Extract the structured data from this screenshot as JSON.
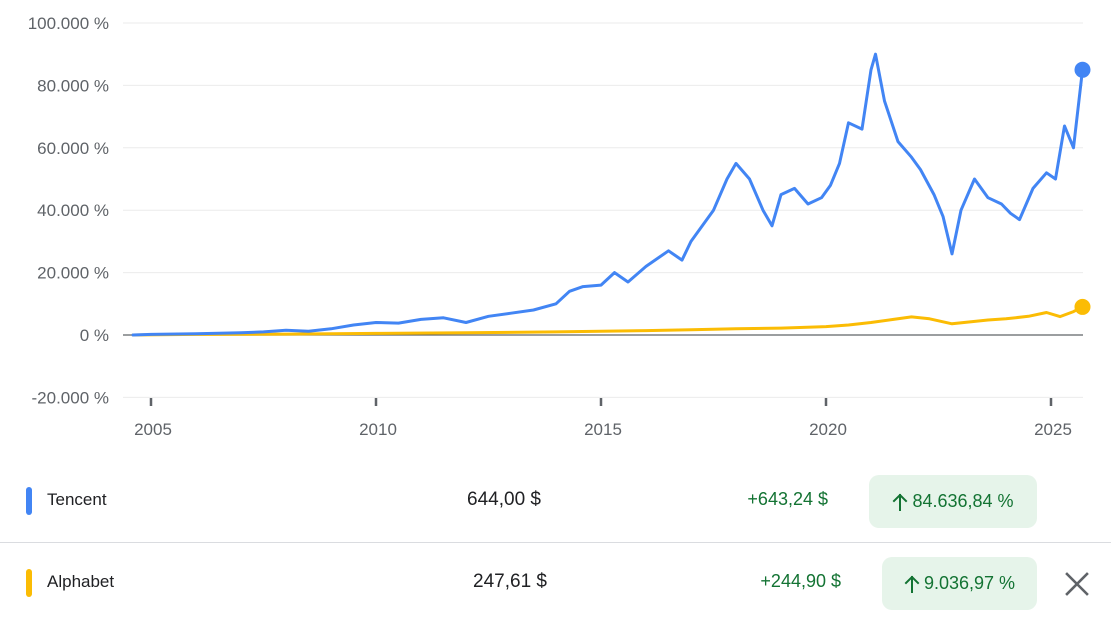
{
  "chart_data": {
    "type": "line",
    "y_tick_labels": [
      "100.000 %",
      "80.000 %",
      "60.000 %",
      "40.000 %",
      "20.000 %",
      "0 %",
      "-20.000 %"
    ],
    "y_ticks": [
      100000,
      80000,
      60000,
      40000,
      20000,
      0,
      -20000
    ],
    "x_tick_labels": [
      "2005",
      "2010",
      "2015",
      "2020",
      "2025"
    ],
    "x_ticks": [
      2005,
      2010,
      2015,
      2020,
      2025
    ],
    "xlim": [
      2004.6,
      2025.8
    ],
    "ylim": [
      -20000,
      100000
    ],
    "grid": true,
    "series": [
      {
        "name": "Tencent",
        "color": "#4285f4",
        "x": [
          2004.6,
          2005.0,
          2006.0,
          2007.0,
          2007.5,
          2008.0,
          2008.5,
          2009.0,
          2009.5,
          2010.0,
          2010.5,
          2011.0,
          2011.5,
          2012.0,
          2012.5,
          2013.0,
          2013.5,
          2014.0,
          2014.3,
          2014.6,
          2015.0,
          2015.3,
          2015.6,
          2016.0,
          2016.5,
          2016.8,
          2017.0,
          2017.5,
          2017.8,
          2018.0,
          2018.3,
          2018.6,
          2018.8,
          2019.0,
          2019.3,
          2019.6,
          2019.9,
          2020.1,
          2020.3,
          2020.5,
          2020.8,
          2021.0,
          2021.1,
          2021.3,
          2021.6,
          2021.9,
          2022.1,
          2022.4,
          2022.6,
          2022.8,
          2023.0,
          2023.3,
          2023.6,
          2023.9,
          2024.1,
          2024.3,
          2024.6,
          2024.9,
          2025.1,
          2025.3,
          2025.5,
          2025.7
        ],
        "values": [
          0,
          200,
          400,
          700,
          1000,
          1500,
          1200,
          2000,
          3200,
          4000,
          3800,
          5000,
          5500,
          4000,
          6000,
          7000,
          8000,
          10000,
          14000,
          15500,
          16000,
          20000,
          17000,
          22000,
          27000,
          24000,
          30000,
          40000,
          50000,
          55000,
          50000,
          40000,
          35000,
          45000,
          47000,
          42000,
          44000,
          48000,
          55000,
          68000,
          66000,
          85000,
          90000,
          75000,
          62000,
          57000,
          53000,
          45000,
          38000,
          26000,
          40000,
          50000,
          44000,
          42000,
          39000,
          37000,
          47000,
          52000,
          50000,
          67000,
          60000,
          85000
        ]
      },
      {
        "name": "Alphabet",
        "color": "#fbbc04",
        "x": [
          2004.6,
          2006.0,
          2008.0,
          2010.0,
          2012.0,
          2014.0,
          2016.0,
          2017.0,
          2018.0,
          2019.0,
          2020.0,
          2020.5,
          2021.0,
          2021.5,
          2021.9,
          2022.3,
          2022.8,
          2023.2,
          2023.6,
          2024.0,
          2024.5,
          2024.9,
          2025.2,
          2025.5,
          2025.7
        ],
        "values": [
          0,
          200,
          300,
          500,
          700,
          1000,
          1400,
          1700,
          2000,
          2200,
          2700,
          3200,
          4000,
          5000,
          5800,
          5200,
          3600,
          4200,
          4800,
          5200,
          6000,
          7200,
          5900,
          7500,
          9000
        ]
      }
    ],
    "title": "",
    "xlabel": "",
    "ylabel": ""
  },
  "legend": {
    "rows": [
      {
        "name": "Tencent",
        "color": "#4285f4",
        "price": "644,00 $",
        "change": "+643,24 $",
        "percent": "84.636,84 %",
        "direction": "up-arrow-icon"
      },
      {
        "name": "Alphabet",
        "color": "#fbbc04",
        "price": "247,61 $",
        "change": "+244,90 $",
        "percent": "9.036,97 %",
        "direction": "up-arrow-icon"
      }
    ],
    "close_icon": "close-icon"
  },
  "colors": {
    "positive_text": "#137333",
    "positive_badge_bg": "#e6f4ea",
    "grid": "#ebebeb",
    "zero_line": "#5f6368"
  }
}
